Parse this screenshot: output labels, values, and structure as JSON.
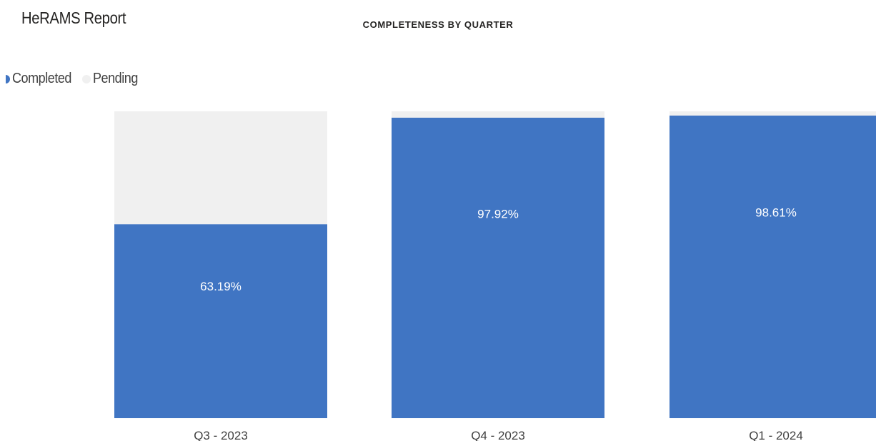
{
  "report": {
    "title": "HeRAMS Report"
  },
  "colors": {
    "completed": "#4075C3",
    "pending": "#F0F0F0",
    "data_label": "#FFFFFF",
    "axis_label": "#404040"
  },
  "chart_data": {
    "type": "bar",
    "stacked": "100%",
    "title": "COMPLETENESS BY QUARTER",
    "xlabel": "",
    "ylabel": "",
    "ylim": [
      0,
      100
    ],
    "grid": false,
    "legend_position": "top-left",
    "categories": [
      "Q3 - 2023",
      "Q4 - 2023",
      "Q1 - 2024"
    ],
    "series": [
      {
        "name": "Completed",
        "values": [
          63.19,
          97.92,
          98.61
        ],
        "labels": [
          "63.19%",
          "97.92%",
          "98.61%"
        ]
      },
      {
        "name": "Pending",
        "values": [
          36.81,
          2.08,
          1.39
        ]
      }
    ]
  }
}
